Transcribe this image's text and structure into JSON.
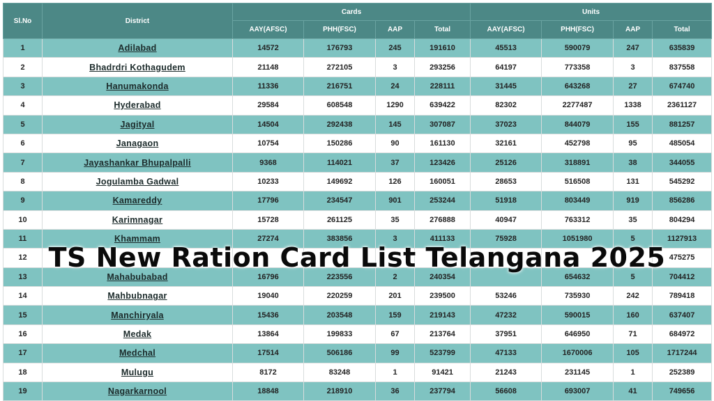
{
  "overlay_title": "TS New Ration Card List Telangana 2025",
  "header": {
    "slno": "Sl.No",
    "district": "District",
    "cards_group": "Cards",
    "units_group": "Units",
    "sub": [
      "AAY(AFSC)",
      "PHH(FSC)",
      "AAP",
      "Total",
      "AAY(AFSC)",
      "PHH(FSC)",
      "AAP",
      "Total"
    ]
  },
  "rows": [
    [
      "1",
      "Adilabad",
      "14572",
      "176793",
      "245",
      "191610",
      "45513",
      "590079",
      "247",
      "635839"
    ],
    [
      "2",
      "Bhadrdri Kothagudem",
      "21148",
      "272105",
      "3",
      "293256",
      "64197",
      "773358",
      "3",
      "837558"
    ],
    [
      "3",
      "Hanumakonda",
      "11336",
      "216751",
      "24",
      "228111",
      "31445",
      "643268",
      "27",
      "674740"
    ],
    [
      "4",
      "Hyderabad",
      "29584",
      "608548",
      "1290",
      "639422",
      "82302",
      "2277487",
      "1338",
      "2361127"
    ],
    [
      "5",
      "Jagityal",
      "14504",
      "292438",
      "145",
      "307087",
      "37023",
      "844079",
      "155",
      "881257"
    ],
    [
      "6",
      "Janagaon",
      "10754",
      "150286",
      "90",
      "161130",
      "32161",
      "452798",
      "95",
      "485054"
    ],
    [
      "7",
      "Jayashankar Bhupalpalli",
      "9368",
      "114021",
      "37",
      "123426",
      "25126",
      "318891",
      "38",
      "344055"
    ],
    [
      "8",
      "Jogulamba Gadwal",
      "10233",
      "149692",
      "126",
      "160051",
      "28653",
      "516508",
      "131",
      "545292"
    ],
    [
      "9",
      "Kamareddy",
      "17796",
      "234547",
      "901",
      "253244",
      "51918",
      "803449",
      "919",
      "856286"
    ],
    [
      "10",
      "Karimnagar",
      "15728",
      "261125",
      "35",
      "276888",
      "40947",
      "763312",
      "35",
      "804294"
    ],
    [
      "11",
      "Khammam",
      "27274",
      "383856",
      "3",
      "411133",
      "75928",
      "1051980",
      "5",
      "1127913"
    ],
    [
      "12",
      "",
      "",
      "",
      "",
      "",
      "",
      "",
      "",
      "475275"
    ],
    [
      "13",
      "Mahabubabad",
      "16796",
      "223556",
      "2",
      "240354",
      "",
      "654632",
      "5",
      "704412"
    ],
    [
      "14",
      "Mahbubnagar",
      "19040",
      "220259",
      "201",
      "239500",
      "53246",
      "735930",
      "242",
      "789418"
    ],
    [
      "15",
      "Manchiryala",
      "15436",
      "203548",
      "159",
      "219143",
      "47232",
      "590015",
      "160",
      "637407"
    ],
    [
      "16",
      "Medak",
      "13864",
      "199833",
      "67",
      "213764",
      "37951",
      "646950",
      "71",
      "684972"
    ],
    [
      "17",
      "Medchal",
      "17514",
      "506186",
      "99",
      "523799",
      "47133",
      "1670006",
      "105",
      "1717244"
    ],
    [
      "18",
      "Mulugu",
      "8172",
      "83248",
      "1",
      "91421",
      "21243",
      "231145",
      "1",
      "252389"
    ],
    [
      "19",
      "Nagarkarnool",
      "18848",
      "218910",
      "36",
      "237794",
      "56608",
      "693007",
      "41",
      "749656"
    ]
  ]
}
